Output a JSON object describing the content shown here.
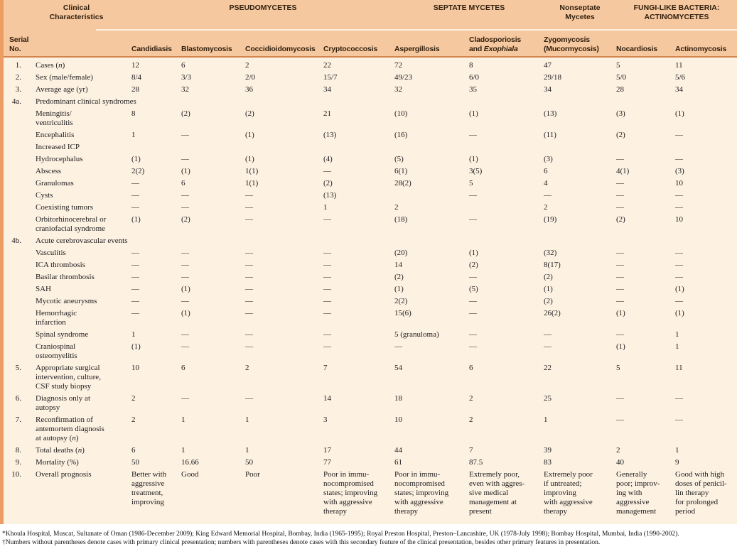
{
  "table": {
    "header": {
      "clinical": "Clinical\nCharacteristics",
      "serial": "Serial\nNo.",
      "groups": [
        {
          "label": "PSEUDOMYCETES",
          "span": 4
        },
        {
          "label": "SEPTATE MYCETES",
          "span": 2
        },
        {
          "label": "Nonseptate\nMycetes",
          "span": 1
        },
        {
          "label": "FUNGI-LIKE BACTERIA:\nACTINOMYCETES",
          "span": 2
        }
      ],
      "columns": [
        "Candidiasis",
        "Blastomycosis",
        "Coccidioidomycosis",
        "Cryptococcosis",
        "Aspergillosis",
        "Cladosporiosis\nand _Exophiala_",
        "Zygomycosis\n(Mucormycosis)",
        "Nocardiosis",
        "Actinomycosis"
      ]
    },
    "rows": [
      {
        "serial": "1.",
        "label": "Cases (_n_)",
        "section": false,
        "cells": [
          "12",
          "6",
          "2",
          "22",
          "72",
          "8",
          "47",
          "5",
          "11"
        ]
      },
      {
        "serial": "2.",
        "label": "Sex (male/female)",
        "section": false,
        "cells": [
          "8/4",
          "3/3",
          "2/0",
          "15/7",
          "49/23",
          "6/0",
          "29/18",
          "5/0",
          "5/6"
        ]
      },
      {
        "serial": "3.",
        "label": "Average age (yr)",
        "section": false,
        "cells": [
          "28",
          "32",
          "36",
          "34",
          "32",
          "35",
          "34",
          "28",
          "34"
        ]
      },
      {
        "serial": "4a.",
        "label": "Predominant clinical syndromes",
        "section": true,
        "cells": []
      },
      {
        "serial": "",
        "label": "Meningitis/\nventriculitis",
        "section": false,
        "cells": [
          "8",
          "(2)",
          "(2)",
          "21",
          "(10)",
          "(1)",
          "(13)",
          "(3)",
          "(1)"
        ]
      },
      {
        "serial": "",
        "label": "Encephalitis",
        "section": false,
        "cells": [
          "1",
          "—",
          "(1)",
          "(13)",
          "(16)",
          "—",
          "(11)",
          "(2)",
          "—"
        ]
      },
      {
        "serial": "",
        "label": "Increased ICP",
        "section": true,
        "cells": []
      },
      {
        "serial": "",
        "label": "Hydrocephalus",
        "section": false,
        "cells": [
          "(1)",
          "—",
          "(1)",
          "(4)",
          "(5)",
          "(1)",
          "(3)",
          "—",
          "—"
        ]
      },
      {
        "serial": "",
        "label": "Abscess",
        "section": false,
        "cells": [
          "2(2)",
          "(1)",
          "1(1)",
          "—",
          "6(1)",
          "3(5)",
          "6",
          "4(1)",
          "(3)"
        ]
      },
      {
        "serial": "",
        "label": "Granulomas",
        "section": false,
        "cells": [
          "—",
          "6",
          "1(1)",
          "(2)",
          "28(2)",
          "5",
          "4",
          "—",
          "10"
        ]
      },
      {
        "serial": "",
        "label": "Cysts",
        "section": false,
        "cells": [
          "—",
          "—",
          "—",
          "(13)",
          "",
          "—",
          "—",
          "—",
          "—"
        ]
      },
      {
        "serial": "",
        "label": "Coexisting tumors",
        "section": false,
        "cells": [
          "—",
          "—",
          "—",
          "1",
          "2",
          "",
          "2",
          "—",
          "—"
        ]
      },
      {
        "serial": "",
        "label": "Orbitorhinocerebral or\ncraniofacial syndrome",
        "section": false,
        "cells": [
          "(1)",
          "(2)",
          "—",
          "—",
          "(18)",
          "—",
          "(19)",
          "(2)",
          "10"
        ]
      },
      {
        "serial": "4b.",
        "label": "Acute cerebrovascular events",
        "section": true,
        "cells": []
      },
      {
        "serial": "",
        "label": "Vasculitis",
        "section": false,
        "cells": [
          "—",
          "—",
          "—",
          "—",
          "(20)",
          "(1)",
          "(32)",
          "—",
          "—"
        ]
      },
      {
        "serial": "",
        "label": "ICA thrombosis",
        "section": false,
        "cells": [
          "—",
          "—",
          "—",
          "—",
          "14",
          "(2)",
          "8(17)",
          "—",
          "—"
        ]
      },
      {
        "serial": "",
        "label": "Basilar thrombosis",
        "section": false,
        "cells": [
          "—",
          "—",
          "—",
          "—",
          "(2)",
          "—",
          "(2)",
          "—",
          "—"
        ]
      },
      {
        "serial": "",
        "label": "SAH",
        "section": false,
        "cells": [
          "—",
          "(1)",
          "—",
          "—",
          "(1)",
          "(5)",
          "(1)",
          "—",
          "(1)"
        ]
      },
      {
        "serial": "",
        "label": "Mycotic aneurysms",
        "section": false,
        "cells": [
          "—",
          "—",
          "—",
          "—",
          "2(2)",
          "—",
          "(2)",
          "—",
          "—"
        ]
      },
      {
        "serial": "",
        "label": "Hemorrhagic\ninfarction",
        "section": false,
        "cells": [
          "—",
          "(1)",
          "—",
          "—",
          "15(6)",
          "—",
          "26(2)",
          "(1)",
          "(1)"
        ]
      },
      {
        "serial": "",
        "label": "Spinal syndrome",
        "section": false,
        "cells": [
          "1",
          "—",
          "—",
          "—",
          "5 (granuloma)",
          "—",
          "—",
          "—",
          "1"
        ]
      },
      {
        "serial": "",
        "label": "Craniospinal\nosteomyelitis",
        "section": false,
        "cells": [
          "(1)",
          "—",
          "—",
          "—",
          "—",
          "—",
          "—",
          "(1)",
          "1"
        ]
      },
      {
        "serial": "5.",
        "label": "Appropriate surgical\nintervention, culture,\nCSF study biopsy",
        "section": false,
        "cells": [
          "10",
          "6",
          "2",
          "7",
          "54",
          "6",
          "22",
          "5",
          "11"
        ]
      },
      {
        "serial": "6.",
        "label": "Diagnosis only at\nautopsy",
        "section": false,
        "cells": [
          "2",
          "—",
          "—",
          "14",
          "18",
          "2",
          "25",
          "—",
          "—"
        ]
      },
      {
        "serial": "7.",
        "label": "Reconfirmation of\nantemortem diagnosis\nat autopsy (_n_)",
        "section": false,
        "cells": [
          "2",
          "1",
          "1",
          "3",
          "10",
          "2",
          "1",
          "—",
          "—"
        ]
      },
      {
        "serial": "8.",
        "label": "Total deaths (_n_)",
        "section": false,
        "cells": [
          "6",
          "1",
          "1",
          "17",
          "44",
          "7",
          "39",
          "2",
          "1"
        ]
      },
      {
        "serial": "9.",
        "label": "Mortality (%)",
        "section": false,
        "cells": [
          "50",
          "16.66",
          "50",
          "77",
          "61",
          "87.5",
          "83",
          "40",
          "9"
        ]
      },
      {
        "serial": "10.",
        "label": "Overall prognosis",
        "section": false,
        "cells": [
          "Better with\naggressive\ntreatment,\nimproving",
          "Good",
          "Poor",
          "Poor in immu-\nnocompromised\nstates; improving\nwith aggressive\ntherapy",
          "Poor in immu-\nnocompromised\nstates; improving\nwith aggressive\ntherapy",
          "Extremely poor,\neven with aggres-\nsive medical\nmanagement at\npresent",
          "Extremely poor\nif untreated;\nimproving\nwith aggressive\ntherapy",
          "Generally\npoor; improv-\ning with\naggressive\nmanagement",
          "Good with high\ndoses of penicil-\nlin therapy\nfor prolonged\nperiod"
        ]
      }
    ]
  },
  "footnotes": [
    "*Khoula Hospital, Muscat, Sultanate of Oman (1986-December 2009); King Edward Memorial Hospital, Bombay, India (1965-1995); Royal Preston Hospital, Preston–Lancashire, UK (1978-July 1998); Bombay Hospital, Mumbai, India (1990-2002).",
    "†Numbers without parentheses denote cases with primary clinical presentation; numbers with parentheses denote cases with this secondary feature of the clinical presentation, besides other primary features in presentation."
  ],
  "colors": {
    "header_band": "#f6c8a0",
    "body_background": "#fdf1e2",
    "left_strip": "#eb9d64",
    "heavy_rule": "#d2834e",
    "header_text": "#32200e",
    "body_text": "#1c1c1c"
  }
}
